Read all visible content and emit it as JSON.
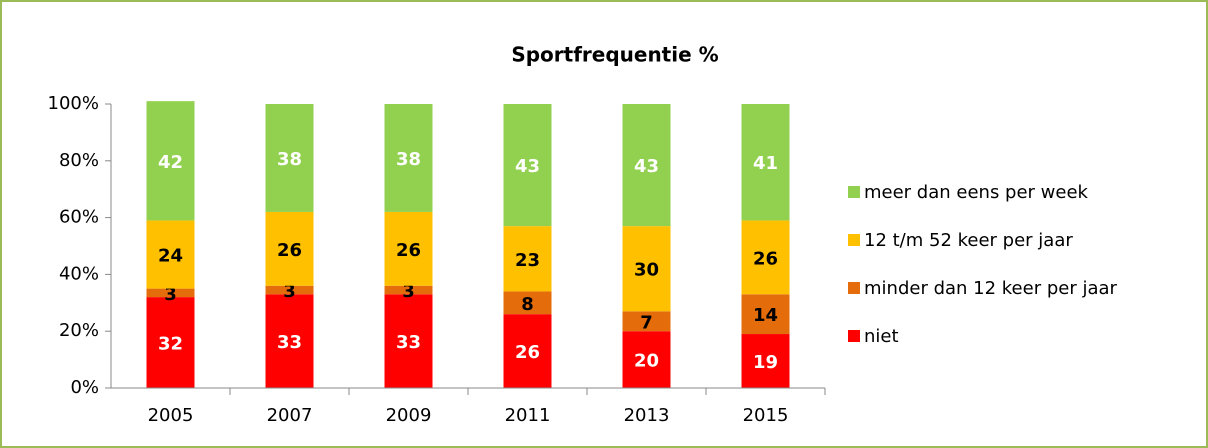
{
  "chart_data": {
    "type": "bar",
    "stacked": true,
    "title": "Sportfrequentie %",
    "categories": [
      "2005",
      "2007",
      "2009",
      "2011",
      "2013",
      "2015"
    ],
    "series": [
      {
        "name": "niet",
        "color": "#ff0000",
        "values": [
          32,
          33,
          33,
          26,
          20,
          19
        ]
      },
      {
        "name": "minder dan 12 keer per jaar",
        "color": "#e46c0a",
        "values": [
          3,
          3,
          3,
          8,
          7,
          14
        ]
      },
      {
        "name": "12 t/m 52 keer per jaar",
        "color": "#ffc000",
        "values": [
          24,
          26,
          26,
          23,
          30,
          26
        ]
      },
      {
        "name": "meer dan eens per week",
        "color": "#92d050",
        "values": [
          42,
          38,
          38,
          43,
          43,
          41
        ]
      }
    ],
    "ylim": [
      0,
      100
    ],
    "yticks": [
      {
        "value": 0,
        "label": "0%"
      },
      {
        "value": 20,
        "label": "20%"
      },
      {
        "value": 40,
        "label": "40%"
      },
      {
        "value": 60,
        "label": "60%"
      },
      {
        "value": 80,
        "label": "80%"
      },
      {
        "value": 100,
        "label": "100%"
      }
    ],
    "legend": "right",
    "grid": false
  }
}
